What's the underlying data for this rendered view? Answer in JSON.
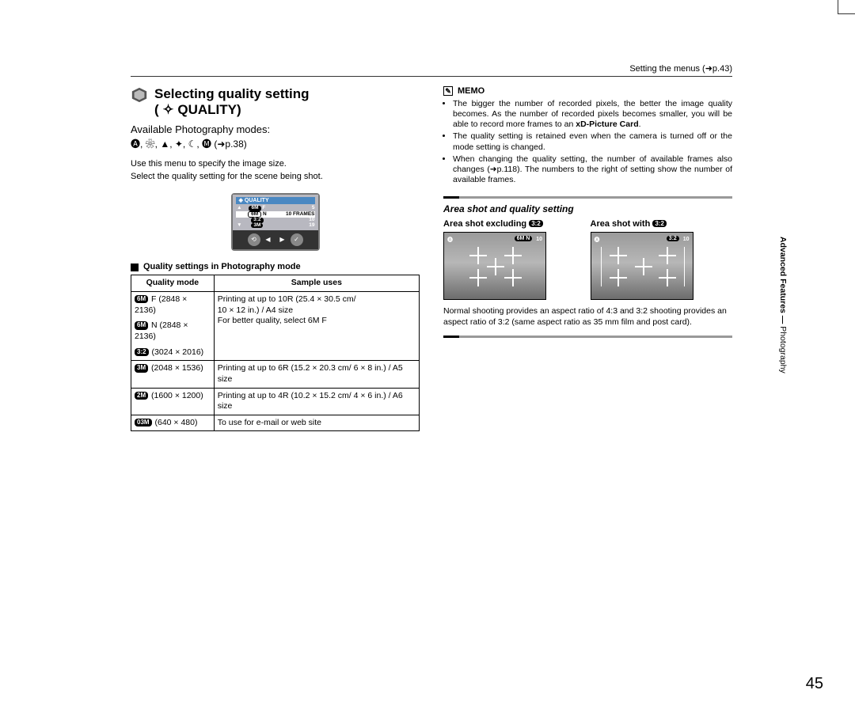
{
  "header": {
    "breadcrumb": "Setting the menus (➜p.43)"
  },
  "title": {
    "line1": "Selecting quality setting",
    "line2": "( ✧ QUALITY)",
    "subtitle": "Available Photography modes:",
    "modes": "🅐, ❀, ▲, ✦, ☾, 🅜 (➜p.38)",
    "body1": "Use this menu to specify the image size.",
    "body2": "Select the quality setting for the scene being shot."
  },
  "lcd": {
    "header": "QUALITY",
    "rows": [
      {
        "badge": "6M",
        "letter": "F",
        "right": "5"
      },
      {
        "badge": "6M",
        "letter": "N",
        "right": "10 FRAMES"
      },
      {
        "badge": "3:2",
        "letter": "",
        "right": "10"
      },
      {
        "badge": "3M",
        "letter": "",
        "right": "19"
      }
    ]
  },
  "table_heading": "Quality settings in Photography mode",
  "table": {
    "head_mode": "Quality mode",
    "head_use": "Sample uses",
    "rows": [
      {
        "badge": "6M",
        "mode": "F (2848 × 2136)",
        "use": "Printing at up to 10R (25.4 × 30.5 cm/",
        "rowspan": 3
      },
      {
        "badge": "6M",
        "mode": "N (2848 × 2136)",
        "use": "10 × 12 in.) / A4 size"
      },
      {
        "badge": "3:2",
        "mode": "(3024 × 2016)",
        "use": "For better quality, select 6M F"
      },
      {
        "badge": "3M",
        "mode": "(2048 × 1536)",
        "use": "Printing at up to 6R (15.2 × 20.3 cm/ 6 × 8 in.) / A5 size"
      },
      {
        "badge": "2M",
        "mode": "(1600 × 1200)",
        "use": "Printing at up to 4R (10.2 × 15.2 cm/ 4 × 6 in.) / A6 size"
      },
      {
        "badge": "03M",
        "mode": "(640 × 480)",
        "use": "To use for e-mail or web site"
      }
    ]
  },
  "memo": {
    "label": "MEMO",
    "items": [
      "The bigger the number of recorded pixels, the better the image quality becomes. As the number of recorded pixels becomes smaller, you will be able to record more frames to an xD-Picture Card.",
      "The quality setting is retained even when the camera is turned off or the mode setting is changed.",
      "When changing the quality setting, the number of available frames also changes (➜p.118). The numbers to the right of setting show the number of available frames."
    ],
    "bold_fragment": "xD-Picture Card"
  },
  "area": {
    "title": "Area shot and quality setting",
    "col1_title_pre": "Area shot excluding ",
    "col1_badge": "3:2",
    "col2_title_pre": "Area shot with ",
    "col2_badge": "3:2",
    "osd_left": "🅐",
    "thumb1_right_a": "6M N",
    "thumb1_right_b": "10",
    "thumb2_right_a": "3:2",
    "thumb2_right_b": "10",
    "caption": "Normal shooting provides an aspect ratio of 4:3 and 3:2 shooting provides an aspect ratio of 3:2 (same aspect ratio as 35 mm film and post card)."
  },
  "side_tab": {
    "bold": "Advanced Features",
    "sep": " — ",
    "thin": "Photography"
  },
  "page_num": "45"
}
